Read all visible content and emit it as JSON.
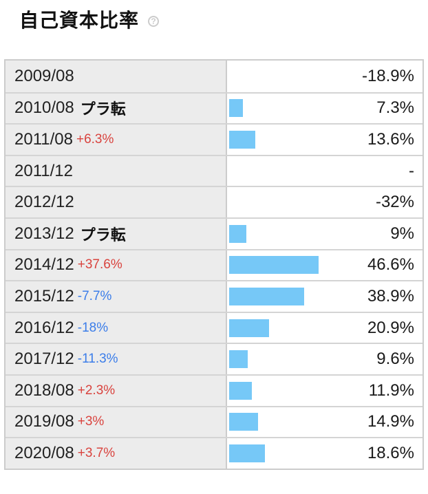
{
  "page": {
    "title": "自己資本比率",
    "help_icon": "?"
  },
  "colors": {
    "bar": "#76c8f7",
    "change_positive": "#d9433e",
    "change_negative": "#3b7de9",
    "label_cell_bg": "#ececec",
    "table_border": "#cccccc"
  },
  "chart_data": {
    "type": "bar",
    "title": "自己資本比率",
    "unit": "%",
    "orientation": "horizontal",
    "bar_max_value": 46.6,
    "categories": [
      "2009/08",
      "2010/08",
      "2011/08",
      "2011/12",
      "2012/12",
      "2013/12",
      "2014/12",
      "2015/12",
      "2016/12",
      "2017/12",
      "2018/08",
      "2019/08",
      "2020/08"
    ],
    "values": [
      -18.9,
      7.3,
      13.6,
      null,
      -32,
      9,
      46.6,
      38.9,
      20.9,
      9.6,
      11.9,
      14.9,
      18.6
    ],
    "rows": [
      {
        "period": "2009/08",
        "change": "",
        "change_type": "none",
        "value": "-18.9%",
        "value_num": -18.9,
        "bar": 0
      },
      {
        "period": "2010/08",
        "change": "プラ転",
        "change_type": "turn",
        "value": "7.3%",
        "value_num": 7.3,
        "bar": 7.3
      },
      {
        "period": "2011/08",
        "change": "+6.3%",
        "change_type": "positive",
        "value": "13.6%",
        "value_num": 13.6,
        "bar": 13.6
      },
      {
        "period": "2011/12",
        "change": "",
        "change_type": "none",
        "value": "-",
        "value_num": null,
        "bar": 0
      },
      {
        "period": "2012/12",
        "change": "",
        "change_type": "none",
        "value": "-32%",
        "value_num": -32,
        "bar": 0
      },
      {
        "period": "2013/12",
        "change": "プラ転",
        "change_type": "turn",
        "value": "9%",
        "value_num": 9,
        "bar": 9
      },
      {
        "period": "2014/12",
        "change": "+37.6%",
        "change_type": "positive",
        "value": "46.6%",
        "value_num": 46.6,
        "bar": 46.6
      },
      {
        "period": "2015/12",
        "change": "-7.7%",
        "change_type": "negative",
        "value": "38.9%",
        "value_num": 38.9,
        "bar": 38.9
      },
      {
        "period": "2016/12",
        "change": "-18%",
        "change_type": "negative",
        "value": "20.9%",
        "value_num": 20.9,
        "bar": 20.9
      },
      {
        "period": "2017/12",
        "change": "-11.3%",
        "change_type": "negative",
        "value": "9.6%",
        "value_num": 9.6,
        "bar": 9.6
      },
      {
        "period": "2018/08",
        "change": "+2.3%",
        "change_type": "positive",
        "value": "11.9%",
        "value_num": 11.9,
        "bar": 11.9
      },
      {
        "period": "2019/08",
        "change": "+3%",
        "change_type": "positive",
        "value": "14.9%",
        "value_num": 14.9,
        "bar": 14.9
      },
      {
        "period": "2020/08",
        "change": "+3.7%",
        "change_type": "positive",
        "value": "18.6%",
        "value_num": 18.6,
        "bar": 18.6
      }
    ]
  }
}
